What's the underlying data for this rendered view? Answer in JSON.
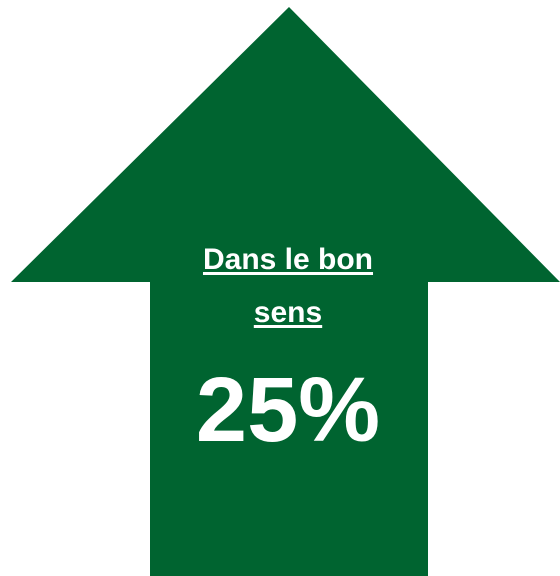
{
  "arrow": {
    "icon": "up-arrow-icon",
    "color": "#006430"
  },
  "label": {
    "line1": "Dans le bon",
    "line2": "sens"
  },
  "value": {
    "text": "25%"
  }
}
